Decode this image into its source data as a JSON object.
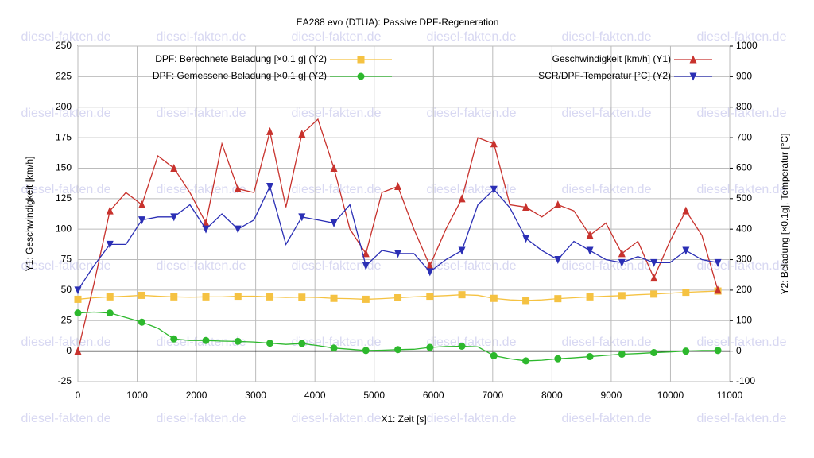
{
  "chart_data": {
    "type": "line",
    "title": "EA288 evo (DTUA): Passive DPF-Regeneration",
    "x_label": "X1: Zeit [s]",
    "y_label": "Y1: Geschwindigkeit [km/h]",
    "y2_label": "Y2: Beladung [×0.1g], Temperatur [°C]",
    "watermark": "diesel-fakten.de",
    "grid": true,
    "xlim": [
      0,
      11000
    ],
    "xticks": [
      0,
      1000,
      2000,
      3000,
      4000,
      5000,
      6000,
      7000,
      8000,
      9000,
      10000,
      11000
    ],
    "ylim": [
      -25,
      250
    ],
    "yticks": [
      -25,
      0,
      25,
      50,
      75,
      100,
      125,
      150,
      175,
      200,
      225,
      250
    ],
    "y2lim": [
      -100,
      1000
    ],
    "y2ticks": [
      -100,
      0,
      100,
      200,
      300,
      400,
      500,
      600,
      700,
      800,
      900,
      1000
    ],
    "x": [
      0,
      270,
      540,
      810,
      1080,
      1350,
      1620,
      1890,
      2160,
      2430,
      2700,
      2970,
      3240,
      3510,
      3780,
      4050,
      4320,
      4590,
      4860,
      5130,
      5400,
      5670,
      5940,
      6210,
      6480,
      6750,
      7020,
      7290,
      7560,
      7830,
      8100,
      8370,
      8640,
      8910,
      9180,
      9450,
      9720,
      9990,
      10260,
      10530,
      10800
    ],
    "series": [
      {
        "name": "DPF: Berechnete Beladung [×0.1 g] (Y2)",
        "color": "#f5c242",
        "marker": "square",
        "axis": "y2",
        "values": [
          170,
          175,
          178,
          180,
          183,
          180,
          178,
          177,
          178,
          178,
          180,
          180,
          178,
          176,
          177,
          176,
          173,
          172,
          170,
          172,
          175,
          178,
          180,
          182,
          185,
          183,
          173,
          168,
          166,
          168,
          172,
          175,
          178,
          180,
          182,
          185,
          187,
          190,
          193,
          195,
          197
        ]
      },
      {
        "name": "DPF: Gemessene Beladung [×0.1 g] (Y2)",
        "color": "#2db82d",
        "marker": "circle",
        "axis": "y2",
        "values": [
          125,
          128,
          125,
          110,
          95,
          75,
          40,
          35,
          35,
          33,
          32,
          30,
          26,
          22,
          25,
          18,
          10,
          6,
          2,
          3,
          5,
          6,
          12,
          15,
          16,
          14,
          -15,
          -25,
          -32,
          -30,
          -25,
          -22,
          -18,
          -14,
          -10,
          -8,
          -5,
          -3,
          0,
          2,
          2
        ]
      },
      {
        "name": "Geschwindigkeit [km/h] (Y1)",
        "color": "#c8322d",
        "marker": "triangle-up",
        "values": [
          0,
          55,
          115,
          130,
          120,
          160,
          150,
          130,
          105,
          170,
          133,
          130,
          180,
          118,
          178,
          190,
          150,
          100,
          80,
          130,
          135,
          100,
          70,
          100,
          125,
          175,
          170,
          120,
          118,
          110,
          120,
          115,
          95,
          105,
          80,
          90,
          60,
          90,
          115,
          95,
          50
        ]
      },
      {
        "name": "SCR/DPF-Temperatur [°C] (Y2)",
        "color": "#2b2fb5",
        "marker": "triangle-down",
        "axis": "y2",
        "values": [
          200,
          280,
          350,
          350,
          430,
          440,
          440,
          480,
          400,
          450,
          400,
          430,
          540,
          350,
          440,
          430,
          420,
          480,
          280,
          330,
          320,
          320,
          260,
          300,
          330,
          480,
          530,
          470,
          370,
          330,
          300,
          360,
          330,
          300,
          290,
          310,
          290,
          290,
          330,
          300,
          290
        ]
      }
    ]
  }
}
